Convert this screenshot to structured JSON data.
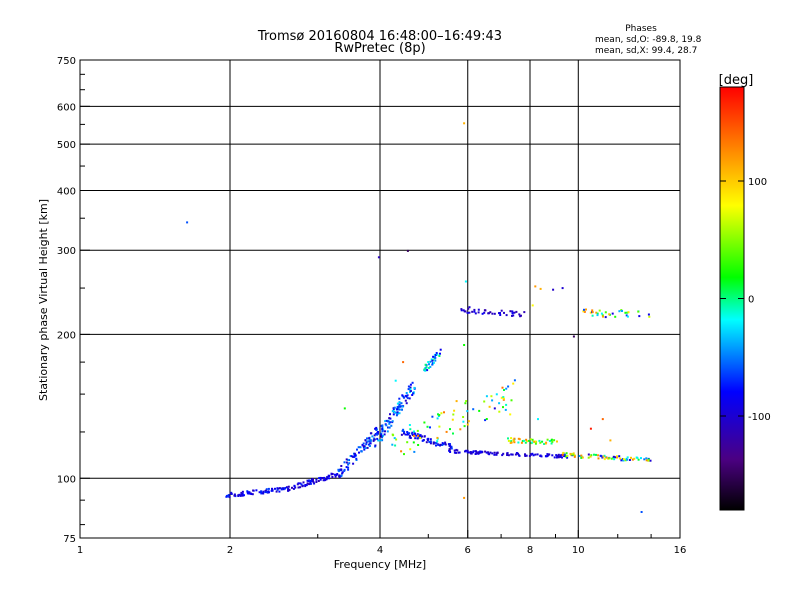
{
  "chart_data": {
    "type": "scatter",
    "title": "Tromsø 20160804 16:48:00–16:49:43",
    "subtitle": "RwPretec (8p)",
    "xlabel": "Frequency [MHz]",
    "ylabel": "Stationary phase Virtual Height [km]",
    "x_scale": "log",
    "y_scale": "log",
    "xlim": [
      1,
      16
    ],
    "ylim": [
      75,
      750
    ],
    "x_ticks": [
      1,
      2,
      4,
      6,
      8,
      10,
      16
    ],
    "x_tick_labels": [
      "1",
      "2",
      "4",
      "6",
      "8",
      "10",
      "16"
    ],
    "y_ticks": [
      75,
      100,
      200,
      300,
      400,
      500,
      600,
      750
    ],
    "y_tick_labels": [
      "75",
      "100",
      "200",
      "300",
      "400",
      "500",
      "600",
      "750"
    ],
    "grid": true,
    "phase_stats": {
      "heading": "Phases",
      "line_o": "mean, sd,O: -89.8, 19.8",
      "line_x": "mean, sd,X:  99.4, 28.7"
    },
    "colorbar": {
      "label": "[deg]",
      "range": [
        -180,
        180
      ],
      "ticks": [
        100,
        0,
        -100
      ],
      "tick_labels": [
        "100",
        "0",
        "-100"
      ],
      "colormap": "rainbow-black-to-red"
    },
    "points": [
      {
        "f": 1.64,
        "h": 343,
        "p": -60
      },
      {
        "f": 3.98,
        "h": 290,
        "p": -110
      },
      {
        "f": 4.55,
        "h": 299,
        "p": -150
      },
      {
        "f": 5.9,
        "h": 553,
        "p": 110
      },
      {
        "f": 5.95,
        "h": 258,
        "p": -20
      },
      {
        "f": 5.9,
        "h": 190,
        "p": 20
      },
      {
        "f": 6.05,
        "h": 228,
        "p": -100
      },
      {
        "f": 8.2,
        "h": 252,
        "p": 120
      },
      {
        "f": 8.4,
        "h": 249,
        "p": 110
      },
      {
        "f": 8.9,
        "h": 248,
        "p": -105
      },
      {
        "f": 9.3,
        "h": 250,
        "p": -100
      },
      {
        "f": 8.1,
        "h": 230,
        "p": 80
      },
      {
        "f": 9.8,
        "h": 198,
        "p": -150
      },
      {
        "f": 5.9,
        "h": 91,
        "p": 120
      },
      {
        "f": 13.4,
        "h": 85,
        "p": -60
      },
      {
        "f": 3.4,
        "h": 140,
        "p": 20
      },
      {
        "f": 4.45,
        "h": 175,
        "p": 140
      },
      {
        "f": 4.3,
        "h": 160,
        "p": -20
      },
      {
        "f": 5.7,
        "h": 145,
        "p": 110
      },
      {
        "f": 6.8,
        "h": 140,
        "p": -100
      },
      {
        "f": 7.3,
        "h": 136,
        "p": 80
      },
      {
        "f": 8.3,
        "h": 133,
        "p": -20
      },
      {
        "f": 10.6,
        "h": 127,
        "p": 170
      },
      {
        "f": 11.2,
        "h": 133,
        "p": 140
      },
      {
        "f": 11.6,
        "h": 120,
        "p": 110
      }
    ],
    "clusters": [
      {
        "name": "low-frequency-trace",
        "f": [
          1.95,
          2.6
        ],
        "h": [
          92,
          95
        ],
        "spread": 0.01,
        "p": [
          -110,
          -60
        ],
        "n": 70
      },
      {
        "name": "trace-rise",
        "f": [
          2.6,
          3.3
        ],
        "h": [
          95,
          102
        ],
        "spread": 0.012,
        "p": [
          -115,
          -70
        ],
        "n": 70
      },
      {
        "name": "trace-steep",
        "f": [
          3.3,
          3.95
        ],
        "h": [
          102,
          125
        ],
        "spread": 0.03,
        "p": [
          -110,
          -40
        ],
        "n": 85
      },
      {
        "name": "cusp-spread",
        "f": [
          3.9,
          4.7
        ],
        "h": [
          118,
          158
        ],
        "spread": 0.04,
        "p": [
          -110,
          -20
        ],
        "n": 110
      },
      {
        "name": "cusp-upper",
        "f": [
          4.9,
          5.3
        ],
        "h": [
          168,
          185
        ],
        "spread": 0.02,
        "p": [
          -90,
          10
        ],
        "n": 35
      },
      {
        "name": "cusp-decay",
        "f": [
          4.4,
          5.6
        ],
        "h": [
          125,
          116
        ],
        "spread": 0.015,
        "p": [
          -110,
          -60
        ],
        "n": 70
      },
      {
        "name": "scatter-mid",
        "f": [
          4.2,
          7.5
        ],
        "h": [
          116,
          150
        ],
        "spread": 0.07,
        "p": [
          -70,
          140
        ],
        "n": 75
      },
      {
        "name": "flat-trace",
        "f": [
          5.5,
          9.5
        ],
        "h": [
          114,
          111
        ],
        "spread": 0.008,
        "p": [
          -115,
          -80
        ],
        "n": 110
      },
      {
        "name": "flat-trace-x",
        "f": [
          7.2,
          9.3
        ],
        "h": [
          120,
          119
        ],
        "spread": 0.012,
        "p": [
          -20,
          130
        ],
        "n": 45
      },
      {
        "name": "high-trace",
        "f": [
          9.3,
          14.2
        ],
        "h": [
          112,
          109
        ],
        "spread": 0.01,
        "p": [
          -110,
          140
        ],
        "n": 75
      },
      {
        "name": "upper-layer-mid",
        "f": [
          5.8,
          7.9
        ],
        "h": [
          225,
          220
        ],
        "spread": 0.012,
        "p": [
          -120,
          -80
        ],
        "n": 40
      },
      {
        "name": "upper-layer-high",
        "f": [
          10.2,
          13.9
        ],
        "h": [
          222,
          220
        ],
        "spread": 0.018,
        "p": [
          -110,
          140
        ],
        "n": 35
      }
    ]
  }
}
